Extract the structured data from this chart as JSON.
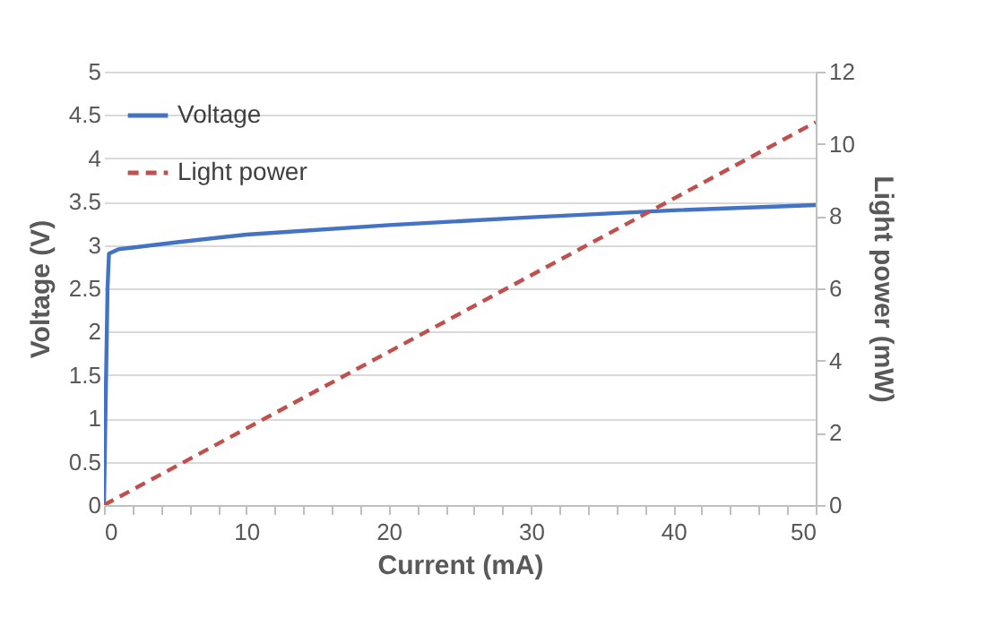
{
  "chart_data": {
    "type": "line",
    "xlabel": "Current (mA)",
    "ylabel": "Voltage (V)",
    "y2label": "Light power (mW)",
    "xlim": [
      0,
      50
    ],
    "xticks": [
      0,
      {
        "value": 2,
        "label": null
      },
      {
        "value": 4,
        "label": null
      },
      {
        "value": 6,
        "label": null
      },
      {
        "value": 8,
        "label": null
      },
      10,
      {
        "value": 12,
        "label": null
      },
      {
        "value": 14,
        "label": null
      },
      {
        "value": 16,
        "label": null
      },
      {
        "value": 18,
        "label": null
      },
      20,
      {
        "value": 22,
        "label": null
      },
      {
        "value": 24,
        "label": null
      },
      {
        "value": 26,
        "label": null
      },
      {
        "value": 28,
        "label": null
      },
      30,
      {
        "value": 32,
        "label": null
      },
      {
        "value": 34,
        "label": null
      },
      {
        "value": 36,
        "label": null
      },
      {
        "value": 38,
        "label": null
      },
      40,
      {
        "value": 42,
        "label": null
      },
      {
        "value": 44,
        "label": null
      },
      {
        "value": 46,
        "label": null
      },
      {
        "value": 48,
        "label": null
      },
      50
    ],
    "ylim": [
      0,
      5
    ],
    "yticks": [
      0,
      0.5,
      1,
      1.5,
      2,
      2.5,
      3,
      3.5,
      4,
      4.5,
      5
    ],
    "y2lim": [
      0,
      12
    ],
    "y2ticks": [
      0,
      2,
      4,
      6,
      8,
      10,
      12
    ],
    "grid": "y",
    "legend": "top left",
    "marker": "none",
    "series": [
      {
        "name": "Voltage",
        "color": "#4472c4",
        "line_style": "solid",
        "x": [
          0,
          0.25,
          0.35,
          1,
          2,
          5,
          10,
          20,
          30,
          40,
          50
        ],
        "values": [
          0,
          2.5,
          2.9,
          2.95,
          2.97,
          3.03,
          3.12,
          3.23,
          3.32,
          3.4,
          3.46
        ]
      },
      {
        "name": "Light power",
        "color": "#c0504d",
        "line_style": "dashed",
        "axis": "y2",
        "x": [
          0,
          50
        ],
        "values": [
          0,
          10.6
        ]
      }
    ]
  }
}
